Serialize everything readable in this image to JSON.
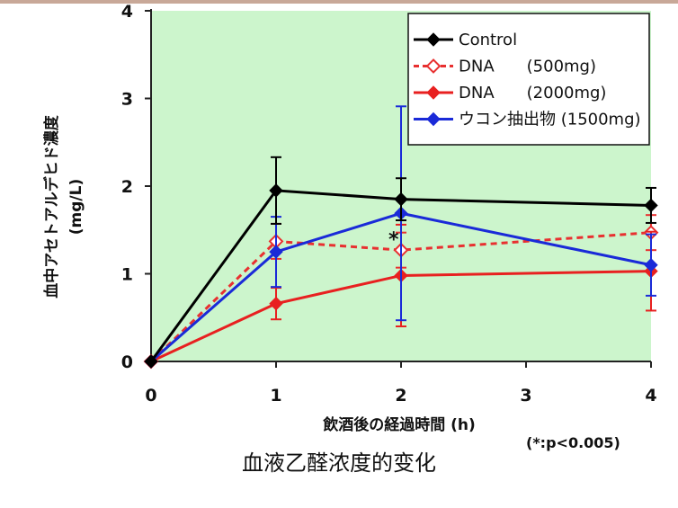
{
  "chart_data": {
    "type": "line",
    "ylabel_lines": [
      "血中アセトアルデヒド濃度",
      "(mg/L)"
    ],
    "xlabel": "飲酒後の経過時間 (h)",
    "x_ticks": [
      0,
      1,
      2,
      3,
      4
    ],
    "y_ticks": [
      0,
      1,
      2,
      3,
      4
    ],
    "xlim": [
      0,
      4
    ],
    "ylim": [
      0,
      4
    ],
    "background_color": "#ccf5cc",
    "legend_position": "top-right",
    "series": [
      {
        "name": "Control",
        "color": "#000000",
        "dash": false,
        "marker": "diamond-filled",
        "x": [
          0,
          1,
          2,
          4
        ],
        "y": [
          0,
          1.95,
          1.85,
          1.78
        ],
        "err": [
          0,
          0.38,
          0.24,
          0.2
        ]
      },
      {
        "name": "DNA　　(500mg)",
        "color": "#e83030",
        "dash": true,
        "marker": "diamond-open",
        "x": [
          0,
          1,
          2,
          4
        ],
        "y": [
          0,
          1.37,
          1.27,
          1.47
        ],
        "err": [
          0,
          0.2,
          0.2,
          0.2
        ]
      },
      {
        "name": "DNA　　(2000mg)",
        "color": "#e82020",
        "dash": false,
        "marker": "diamond-filled",
        "x": [
          0,
          1,
          2,
          4
        ],
        "y": [
          0,
          0.66,
          0.98,
          1.03
        ],
        "err": [
          0,
          0.18,
          0.58,
          0.45
        ]
      },
      {
        "name": "ウコン抽出物 (1500mg)",
        "color": "#1a2ad8",
        "dash": false,
        "marker": "diamond-filled",
        "x": [
          0,
          1,
          2,
          4
        ],
        "y": [
          0,
          1.25,
          1.69,
          1.1
        ],
        "err": [
          0,
          0.4,
          1.22,
          0.35
        ]
      }
    ],
    "annotations": [
      {
        "text": "*",
        "x": 2,
        "y": 1.38
      }
    ]
  },
  "caption": "血液乙醛浓度的变化",
  "footnote": "(*:p<0.005)"
}
